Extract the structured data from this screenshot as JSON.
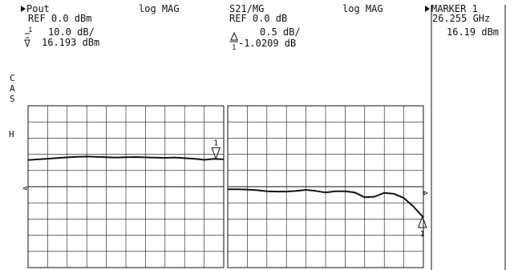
{
  "colors": {
    "background": "#ffffff",
    "ink": "#111111"
  },
  "left_header": {
    "channel": "Pout",
    "format": "log MAG",
    "ref": "REF 0.0 dBm",
    "scale": "10.0 dB/",
    "marker_value": "16.193 dBm"
  },
  "right_header": {
    "channel": "S21/MG",
    "format": "log MAG",
    "ref": "REF 0.0 dB",
    "scale": "0.5 dB/",
    "marker_value": "-1.0209 dB"
  },
  "marker_panel": {
    "label": "MARKER 1",
    "frequency": "26.255 GHz",
    "value": "16.19 dBm"
  },
  "side_labels": {
    "line1": "C",
    "line2": "A",
    "line3": "S",
    "hold": "H"
  },
  "marker_number": "1",
  "chart_data": [
    {
      "type": "line",
      "series": [
        {
          "x": [
            0,
            0.5,
            1,
            1.5,
            2,
            2.5,
            3,
            3.5,
            4,
            4.5,
            5,
            5.5,
            6,
            6.5,
            7,
            7.5,
            8,
            8.5,
            9,
            9.5,
            10
          ],
          "values": [
            16.5,
            16.9,
            17.3,
            17.7,
            18.1,
            18.4,
            18.6,
            18.4,
            18.2,
            18.0,
            18.2,
            18.3,
            18.1,
            17.9,
            17.8,
            18.0,
            17.6,
            17.3,
            16.6,
            17.2,
            16.9
          ]
        }
      ],
      "ylim": [
        -50,
        50
      ],
      "xlim": [
        0,
        10
      ],
      "grid": true,
      "reference_level": 0,
      "marker": {
        "x": 9.6,
        "label": "1"
      }
    },
    {
      "type": "line",
      "series": [
        {
          "x": [
            0,
            0.5,
            1,
            1.5,
            2,
            2.5,
            3,
            3.5,
            4,
            4.5,
            5,
            5.5,
            6,
            6.5,
            7,
            7.5,
            8,
            8.5,
            9,
            9.5,
            10
          ],
          "values": [
            -0.08,
            -0.08,
            -0.09,
            -0.11,
            -0.14,
            -0.15,
            -0.15,
            -0.13,
            -0.1,
            -0.13,
            -0.18,
            -0.14,
            -0.14,
            -0.18,
            -0.33,
            -0.31,
            -0.19,
            -0.22,
            -0.35,
            -0.62,
            -0.95
          ]
        }
      ],
      "ylim": [
        -2.5,
        2.5
      ],
      "xlim": [
        0,
        10
      ],
      "grid": true,
      "reference_level": 0,
      "marker": {
        "x": 9.95,
        "label": "1"
      }
    }
  ]
}
